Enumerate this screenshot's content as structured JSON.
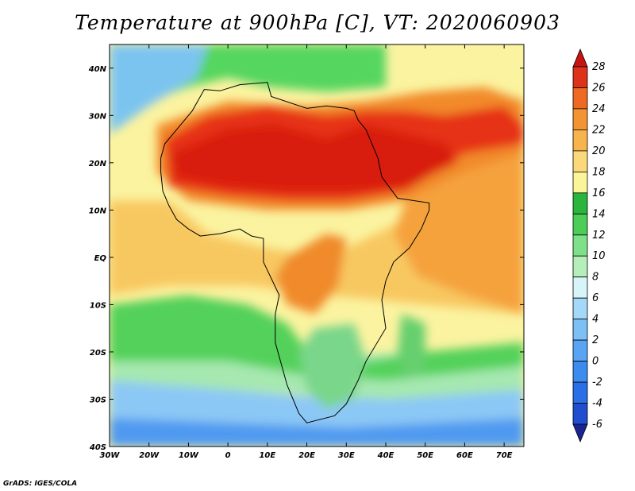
{
  "title": "Temperature at 900hPa [C], VT: 2020060903",
  "credit": "GrADS: IGES/COLA",
  "map": {
    "lon_range": [
      -30,
      75
    ],
    "lat_range": [
      -40,
      45
    ],
    "lon_ticks": [
      {
        "value": -30,
        "label": "30W"
      },
      {
        "value": -20,
        "label": "20W"
      },
      {
        "value": -10,
        "label": "10W"
      },
      {
        "value": 0,
        "label": "0"
      },
      {
        "value": 10,
        "label": "10E"
      },
      {
        "value": 20,
        "label": "20E"
      },
      {
        "value": 30,
        "label": "30E"
      },
      {
        "value": 40,
        "label": "40E"
      },
      {
        "value": 50,
        "label": "50E"
      },
      {
        "value": 60,
        "label": "60E"
      },
      {
        "value": 70,
        "label": "70E"
      }
    ],
    "lat_ticks": [
      {
        "value": 40,
        "label": "40N"
      },
      {
        "value": 30,
        "label": "30N"
      },
      {
        "value": 20,
        "label": "20N"
      },
      {
        "value": 10,
        "label": "10N"
      },
      {
        "value": 0,
        "label": "EQ"
      },
      {
        "value": -10,
        "label": "10S"
      },
      {
        "value": -20,
        "label": "20S"
      },
      {
        "value": -30,
        "label": "30S"
      },
      {
        "value": -40,
        "label": "40S"
      }
    ],
    "temperature_regions": [
      {
        "name": "cold-southern-ocean",
        "color": "#4f9af0",
        "points": [
          [
            -30,
            -30
          ],
          [
            75,
            -32
          ],
          [
            75,
            -40
          ],
          [
            -30,
            -40
          ]
        ]
      },
      {
        "name": "cool-south-atlantic",
        "color": "#8cc8f5",
        "points": [
          [
            -30,
            -24
          ],
          [
            0,
            -28
          ],
          [
            30,
            -30
          ],
          [
            75,
            -27
          ],
          [
            75,
            -34
          ],
          [
            30,
            -36
          ],
          [
            -30,
            -34
          ]
        ]
      },
      {
        "name": "mild-southern-band",
        "color": "#a6e8b0",
        "points": [
          [
            -30,
            -18
          ],
          [
            20,
            -21
          ],
          [
            50,
            -20
          ],
          [
            75,
            -19
          ],
          [
            75,
            -28
          ],
          [
            40,
            -30
          ],
          [
            0,
            -28
          ],
          [
            -30,
            -26
          ]
        ]
      },
      {
        "name": "green-south-atlantic",
        "color": "#52d15a",
        "points": [
          [
            -30,
            -10
          ],
          [
            -10,
            -8
          ],
          [
            5,
            -10
          ],
          [
            15,
            -14
          ],
          [
            22,
            -22
          ],
          [
            35,
            -22
          ],
          [
            50,
            -20
          ],
          [
            75,
            -18
          ],
          [
            75,
            -23
          ],
          [
            40,
            -26
          ],
          [
            20,
            -25
          ],
          [
            0,
            -22
          ],
          [
            -30,
            -22
          ]
        ]
      },
      {
        "name": "warm-tropical-ocean",
        "color": "#f8c860",
        "points": [
          [
            -30,
            12
          ],
          [
            -15,
            12
          ],
          [
            -5,
            5
          ],
          [
            10,
            2
          ],
          [
            25,
            0
          ],
          [
            50,
            10
          ],
          [
            75,
            12
          ],
          [
            75,
            -12
          ],
          [
            50,
            -10
          ],
          [
            25,
            -8
          ],
          [
            5,
            -6
          ],
          [
            -15,
            -6
          ],
          [
            -30,
            -8
          ]
        ]
      },
      {
        "name": "orange-indian-ocean",
        "color": "#f5a23c",
        "points": [
          [
            45,
            12
          ],
          [
            60,
            20
          ],
          [
            75,
            25
          ],
          [
            75,
            -12
          ],
          [
            60,
            -8
          ],
          [
            48,
            -4
          ],
          [
            42,
            5
          ]
        ]
      },
      {
        "name": "cool-mediterranean",
        "color": "#55d65f",
        "points": [
          [
            -30,
            45
          ],
          [
            40,
            45
          ],
          [
            40,
            36
          ],
          [
            25,
            35
          ],
          [
            10,
            36
          ],
          [
            0,
            38
          ],
          [
            -10,
            36
          ],
          [
            -30,
            30
          ]
        ]
      },
      {
        "name": "cool-atlantic-north",
        "color": "#7cc4f0",
        "points": [
          [
            -30,
            45
          ],
          [
            -5,
            45
          ],
          [
            -8,
            38
          ],
          [
            -20,
            32
          ],
          [
            -30,
            26
          ]
        ]
      },
      {
        "name": "sahara-warm",
        "color": "#f28a2a",
        "points": [
          [
            -18,
            28
          ],
          [
            0,
            33
          ],
          [
            20,
            32
          ],
          [
            35,
            33
          ],
          [
            50,
            35
          ],
          [
            65,
            36
          ],
          [
            75,
            33
          ],
          [
            75,
            22
          ],
          [
            60,
            18
          ],
          [
            45,
            12
          ],
          [
            30,
            10
          ],
          [
            10,
            10
          ],
          [
            -10,
            12
          ],
          [
            -18,
            18
          ]
        ]
      },
      {
        "name": "sahara-hot",
        "color": "#e63018",
        "points": [
          [
            -16,
            25
          ],
          [
            -5,
            30
          ],
          [
            10,
            32
          ],
          [
            25,
            30
          ],
          [
            35,
            31
          ],
          [
            45,
            31
          ],
          [
            55,
            30
          ],
          [
            70,
            32
          ],
          [
            75,
            28
          ],
          [
            75,
            24
          ],
          [
            60,
            22
          ],
          [
            45,
            14
          ],
          [
            30,
            12
          ],
          [
            15,
            12
          ],
          [
            0,
            13
          ],
          [
            -15,
            15
          ]
        ]
      },
      {
        "name": "sahara-core",
        "color": "#d81c0c",
        "points": [
          [
            -14,
            22
          ],
          [
            0,
            27
          ],
          [
            12,
            28
          ],
          [
            25,
            25
          ],
          [
            35,
            28
          ],
          [
            45,
            26
          ],
          [
            55,
            24
          ],
          [
            58,
            20
          ],
          [
            45,
            15
          ],
          [
            30,
            14
          ],
          [
            15,
            14
          ],
          [
            0,
            15
          ],
          [
            -13,
            17
          ]
        ]
      },
      {
        "name": "central-africa-warm",
        "color": "#f08a2c",
        "points": [
          [
            15,
            0
          ],
          [
            25,
            5
          ],
          [
            30,
            4
          ],
          [
            28,
            -6
          ],
          [
            22,
            -12
          ],
          [
            15,
            -10
          ],
          [
            12,
            -4
          ]
        ]
      },
      {
        "name": "southern-africa-cool",
        "color": "#7ad68a",
        "points": [
          [
            22,
            -15
          ],
          [
            32,
            -14
          ],
          [
            35,
            -22
          ],
          [
            32,
            -30
          ],
          [
            25,
            -32
          ],
          [
            20,
            -28
          ],
          [
            18,
            -20
          ]
        ]
      },
      {
        "name": "madagascar-cool",
        "color": "#66cf6e",
        "points": [
          [
            44,
            -12
          ],
          [
            50,
            -14
          ],
          [
            50,
            -24
          ],
          [
            45,
            -26
          ],
          [
            43,
            -20
          ]
        ]
      }
    ],
    "coastline": [
      [
        -17,
        21
      ],
      [
        -16,
        24
      ],
      [
        -13,
        27
      ],
      [
        -9,
        31
      ],
      [
        -6,
        35.5
      ],
      [
        -2,
        35.2
      ],
      [
        3,
        36.5
      ],
      [
        10,
        37
      ],
      [
        11,
        34
      ],
      [
        20,
        31.5
      ],
      [
        25,
        32
      ],
      [
        30,
        31.5
      ],
      [
        32,
        31
      ],
      [
        33,
        29
      ],
      [
        35,
        27
      ],
      [
        38,
        21
      ],
      [
        39,
        17
      ],
      [
        43,
        12.5
      ],
      [
        51,
        11.5
      ],
      [
        51,
        10
      ],
      [
        49,
        6
      ],
      [
        46,
        2
      ],
      [
        42,
        -1
      ],
      [
        40,
        -5
      ],
      [
        39,
        -9
      ],
      [
        40,
        -15
      ],
      [
        35,
        -22
      ],
      [
        33,
        -26
      ],
      [
        30,
        -31
      ],
      [
        27,
        -33.5
      ],
      [
        20,
        -35
      ],
      [
        18,
        -33
      ],
      [
        15,
        -27
      ],
      [
        12,
        -18
      ],
      [
        12,
        -12
      ],
      [
        13,
        -8
      ],
      [
        9,
        -1
      ],
      [
        9,
        4
      ],
      [
        6,
        4.5
      ],
      [
        3,
        6
      ],
      [
        -2,
        5
      ],
      [
        -7,
        4.5
      ],
      [
        -10,
        6
      ],
      [
        -13,
        8
      ],
      [
        -15,
        11
      ],
      [
        -16.5,
        14
      ],
      [
        -17,
        18
      ],
      [
        -17,
        21
      ]
    ],
    "colorbar": {
      "levels": [
        -6,
        -4,
        -2,
        0,
        2,
        4,
        6,
        8,
        10,
        12,
        14,
        16,
        18,
        20,
        22,
        24,
        26,
        28
      ],
      "colors": [
        "#1a2390",
        "#1f4fd0",
        "#2a6fe6",
        "#3c8cf0",
        "#5aa5f3",
        "#7cc0f6",
        "#a4d8f8",
        "#d7f5f8",
        "#b4eeb9",
        "#7fe08a",
        "#4ccd56",
        "#2ab53c",
        "#fbf59a",
        "#fbd97a",
        "#f8b44c",
        "#f39432",
        "#ee6a22",
        "#de3318",
        "#c71410"
      ],
      "labels": [
        "-6",
        "-4",
        "-2",
        "0",
        "2",
        "4",
        "6",
        "8",
        "10",
        "12",
        "14",
        "16",
        "18",
        "20",
        "22",
        "24",
        "26",
        "28"
      ]
    }
  }
}
